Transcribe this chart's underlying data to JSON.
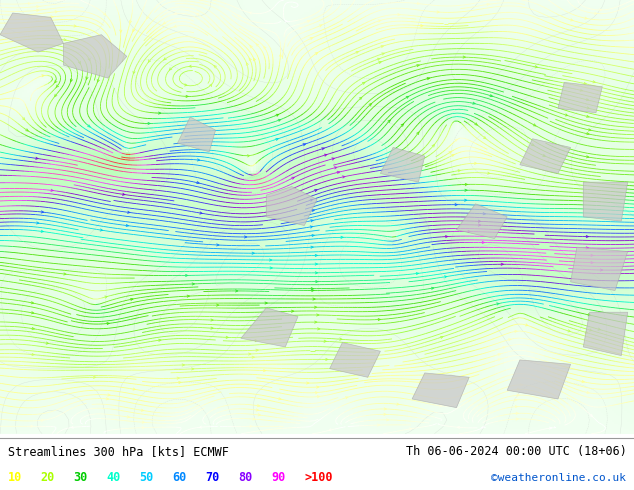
{
  "title_left": "Streamlines 300 hPa [kts] ECMWF",
  "title_right": "Th 06-06-2024 00:00 UTC (18+06)",
  "watermark": "©weatheronline.co.uk",
  "legend_values": [
    "10",
    "20",
    "30",
    "40",
    "50",
    "60",
    "70",
    "80",
    "90",
    ">100"
  ],
  "legend_colors": [
    "#ffff00",
    "#aaff00",
    "#00cc00",
    "#00ffcc",
    "#00ccff",
    "#0088ff",
    "#0000ff",
    "#8800ff",
    "#ff00ff",
    "#ff0000"
  ],
  "fig_width": 6.34,
  "fig_height": 4.9,
  "dpi": 100,
  "map_bg": "#ffffff",
  "speed_cmap_nodes": [
    [
      0.0,
      "#ffffff"
    ],
    [
      0.08,
      "#ffff88"
    ],
    [
      0.16,
      "#aaff44"
    ],
    [
      0.25,
      "#44dd00"
    ],
    [
      0.35,
      "#00ffcc"
    ],
    [
      0.45,
      "#00aaff"
    ],
    [
      0.55,
      "#2244ff"
    ],
    [
      0.65,
      "#8800cc"
    ],
    [
      0.78,
      "#ff44ff"
    ],
    [
      1.0,
      "#ff2200"
    ]
  ]
}
